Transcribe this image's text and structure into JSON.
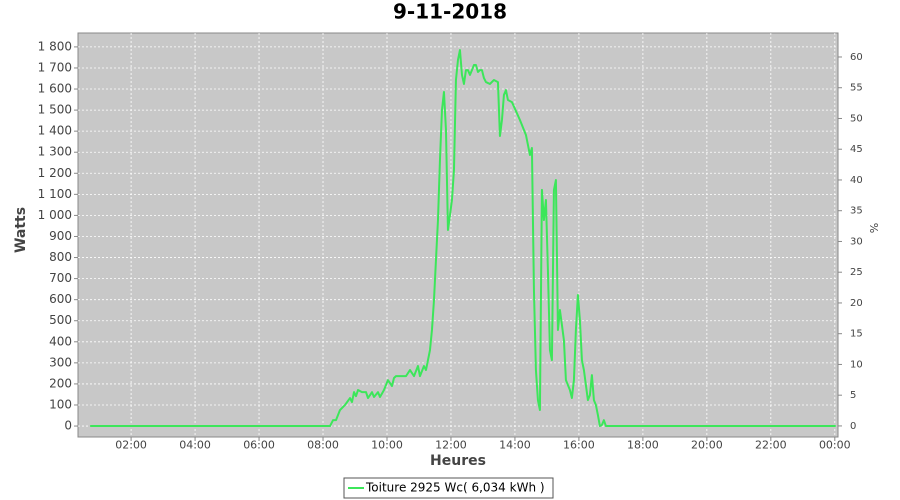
{
  "chart_data": {
    "type": "line",
    "title": "9-11-2018",
    "x_label": "Heures",
    "y_label": "Watts",
    "y2_label": "%",
    "xlim": [
      0.34,
      24.1
    ],
    "ylim": [
      -52,
      1866
    ],
    "y2lim": [
      -1.8,
      63.9
    ],
    "xticks": [
      {
        "value": 2,
        "label": "02:00"
      },
      {
        "value": 4,
        "label": "04:00"
      },
      {
        "value": 6,
        "label": "06:00"
      },
      {
        "value": 8,
        "label": "08:00"
      },
      {
        "value": 10,
        "label": "10:00"
      },
      {
        "value": 12,
        "label": "12:00"
      },
      {
        "value": 14,
        "label": "14:00"
      },
      {
        "value": 16,
        "label": "16:00"
      },
      {
        "value": 18,
        "label": "18:00"
      },
      {
        "value": 20,
        "label": "20:00"
      },
      {
        "value": 22,
        "label": "22:00"
      },
      {
        "value": 24,
        "label": "00:00"
      }
    ],
    "yticks": [
      0,
      100,
      200,
      300,
      400,
      500,
      600,
      700,
      800,
      900,
      {
        "value": 1000,
        "label": "1 000"
      },
      {
        "value": 1100,
        "label": "1 100"
      },
      {
        "value": 1200,
        "label": "1 200"
      },
      {
        "value": 1300,
        "label": "1 300"
      },
      {
        "value": 1400,
        "label": "1 400"
      },
      {
        "value": 1500,
        "label": "1 500"
      },
      {
        "value": 1600,
        "label": "1 600"
      },
      {
        "value": 1700,
        "label": "1 700"
      },
      {
        "value": 1800,
        "label": "1 800"
      }
    ],
    "y2ticks": [
      0,
      5,
      10,
      15,
      20,
      25,
      30,
      35,
      40,
      45,
      50,
      55,
      60
    ],
    "grid": true,
    "x": [
      0.719,
      8.219,
      8.313,
      8.406,
      8.531,
      8.688,
      8.844,
      8.906,
      8.969,
      9.031,
      9.094,
      9.219,
      9.344,
      9.406,
      9.531,
      9.594,
      9.719,
      9.781,
      9.906,
      10.031,
      10.156,
      10.219,
      10.281,
      10.406,
      10.594,
      10.719,
      10.844,
      10.969,
      11.031,
      11.156,
      11.219,
      11.344,
      11.406,
      11.469,
      11.531,
      11.594,
      11.656,
      11.719,
      11.781,
      11.844,
      11.906,
      11.969,
      12.031,
      12.094,
      12.156,
      12.219,
      12.281,
      12.344,
      12.406,
      12.469,
      12.531,
      12.594,
      12.656,
      12.719,
      12.781,
      12.844,
      12.906,
      12.969,
      13.031,
      13.094,
      13.219,
      13.344,
      13.469,
      13.531,
      13.594,
      13.656,
      13.719,
      13.781,
      13.906,
      14.156,
      14.344,
      14.469,
      14.531,
      14.594,
      14.656,
      14.719,
      14.781,
      14.844,
      14.906,
      14.969,
      15.031,
      15.094,
      15.156,
      15.219,
      15.281,
      15.344,
      15.406,
      15.469,
      15.531,
      15.594,
      15.719,
      15.781,
      15.844,
      15.906,
      15.969,
      16.031,
      16.094,
      16.156,
      16.281,
      16.344,
      16.406,
      16.469,
      16.531,
      16.594,
      16.656,
      16.719,
      16.781,
      16.844,
      24.031
    ],
    "series": [
      {
        "name": "Toiture 2925 Wc( 6,034 kWh )",
        "color": "#3ce65a",
        "values": [
          0,
          0,
          28,
          28,
          76,
          100,
          133,
          114,
          161,
          142,
          171,
          161,
          161,
          133,
          161,
          138,
          161,
          138,
          171,
          218,
          190,
          228,
          237,
          237,
          237,
          266,
          237,
          285,
          237,
          285,
          266,
          361,
          456,
          598,
          788,
          978,
          1263,
          1500,
          1586,
          1405,
          931,
          1002,
          1073,
          1216,
          1643,
          1738,
          1785,
          1667,
          1624,
          1690,
          1690,
          1667,
          1690,
          1714,
          1714,
          1681,
          1690,
          1690,
          1652,
          1633,
          1624,
          1643,
          1633,
          1377,
          1453,
          1572,
          1595,
          1548,
          1538,
          1453,
          1382,
          1287,
          1320,
          646,
          266,
          123,
          76,
          1121,
          978,
          1073,
          741,
          361,
          313,
          1121,
          1168,
          456,
          551,
          480,
          408,
          218,
          171,
          133,
          218,
          456,
          622,
          503,
          313,
          266,
          123,
          147,
          242,
          123,
          100,
          52,
          0,
          5,
          28,
          0,
          0
        ]
      }
    ]
  }
}
